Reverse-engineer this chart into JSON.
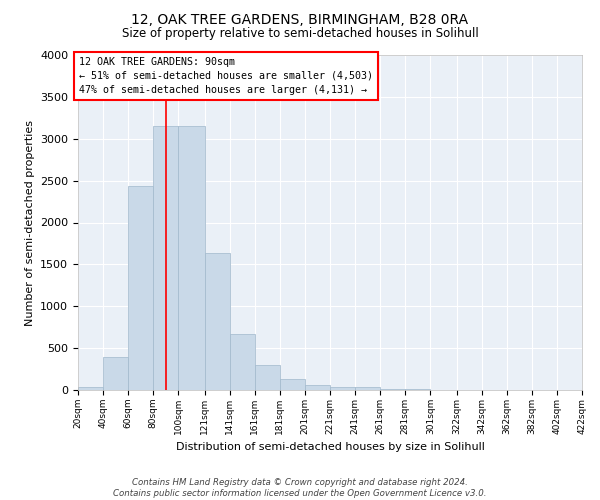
{
  "title": "12, OAK TREE GARDENS, BIRMINGHAM, B28 0RA",
  "subtitle": "Size of property relative to semi-detached houses in Solihull",
  "xlabel": "Distribution of semi-detached houses by size in Solihull",
  "ylabel": "Number of semi-detached properties",
  "bar_color": "#c9d9e8",
  "bar_edge_color": "#a0b8cc",
  "background_color": "#eaf0f7",
  "annotation_text": "12 OAK TREE GARDENS: 90sqm\n← 51% of semi-detached houses are smaller (4,503)\n47% of semi-detached houses are larger (4,131) →",
  "annotation_box_color": "red",
  "property_line_color": "red",
  "property_value": 90,
  "footer": "Contains HM Land Registry data © Crown copyright and database right 2024.\nContains public sector information licensed under the Open Government Licence v3.0.",
  "bins": [
    20,
    40,
    60,
    80,
    100,
    121,
    141,
    161,
    181,
    201,
    221,
    241,
    261,
    281,
    301,
    322,
    342,
    362,
    382,
    402,
    422
  ],
  "counts": [
    30,
    390,
    2430,
    3150,
    3150,
    1640,
    670,
    300,
    130,
    65,
    35,
    40,
    15,
    10,
    5,
    3,
    2,
    2,
    1,
    1
  ],
  "ylim": [
    0,
    4000
  ],
  "yticks": [
    0,
    500,
    1000,
    1500,
    2000,
    2500,
    3000,
    3500,
    4000
  ],
  "tick_labels": [
    "20sqm",
    "40sqm",
    "60sqm",
    "80sqm",
    "100sqm",
    "121sqm",
    "141sqm",
    "161sqm",
    "181sqm",
    "201sqm",
    "221sqm",
    "241sqm",
    "261sqm",
    "281sqm",
    "301sqm",
    "322sqm",
    "342sqm",
    "362sqm",
    "382sqm",
    "402sqm",
    "422sqm"
  ]
}
